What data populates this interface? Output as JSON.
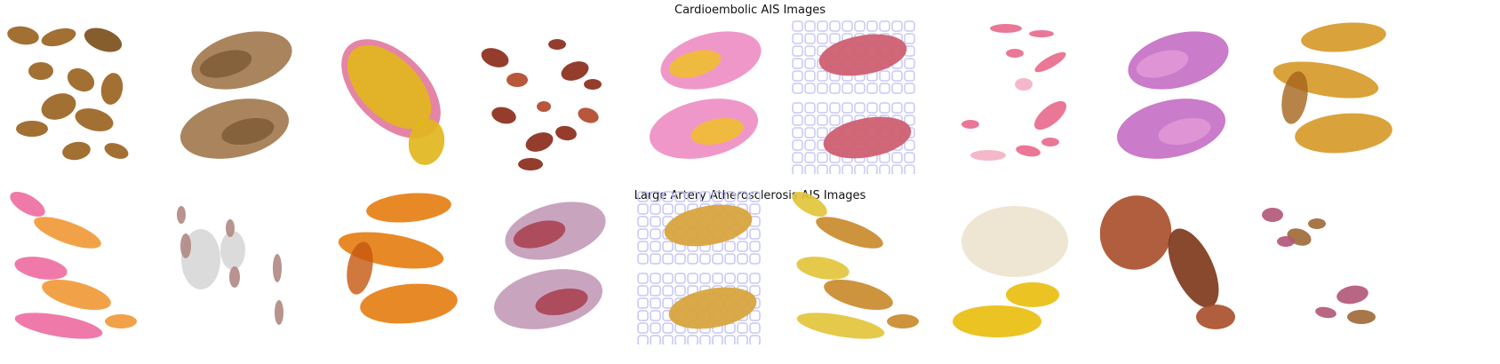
{
  "figure": {
    "rows": [
      {
        "title": "Cardioembolic AIS Images",
        "tiles": [
          {
            "stain": "brown",
            "color": "#9a6422",
            "accent": "#7c4f1b",
            "layout": "clusters"
          },
          {
            "stain": "tan-brown",
            "color": "#a27a4f",
            "accent": "#7c5a35",
            "layout": "two-blocks"
          },
          {
            "stain": "yellow",
            "color": "#e2b61e",
            "accent": "#e27aa0",
            "layout": "single-mass"
          },
          {
            "stain": "red-brown",
            "color": "#b2492a",
            "accent": "#8b2d1a",
            "layout": "scattered"
          },
          {
            "stain": "pink-yellow",
            "color": "#ef8ec4",
            "accent": "#f0c31e",
            "layout": "two-blocks"
          },
          {
            "stain": "pink-grid",
            "color": "#cd5b6d",
            "accent": "#c8c8f4",
            "layout": "grid-two"
          },
          {
            "stain": "pink",
            "color": "#e86b8d",
            "accent": "#f4b2c6",
            "layout": "scattered-fine"
          },
          {
            "stain": "purple-pink",
            "color": "#c570c4",
            "accent": "#e49bd8",
            "layout": "two-blocks"
          },
          {
            "stain": "orange",
            "color": "#d69a2a",
            "accent": "#a4641c",
            "layout": "three-bands"
          }
        ]
      },
      {
        "title": "Large Artery Atherosclerosis AIS Images",
        "tiles": [
          {
            "stain": "pink-orange",
            "color": "#ee6fa2",
            "accent": "#f09a3a",
            "layout": "diagonal"
          },
          {
            "stain": "grey",
            "color": "#b28a86",
            "accent": "#d8d8d8",
            "layout": "ovals"
          },
          {
            "stain": "orange",
            "color": "#e67f16",
            "accent": "#c5560e",
            "layout": "three-bands"
          },
          {
            "stain": "lilac",
            "color": "#c49cb8",
            "accent": "#a63645",
            "layout": "two-blocks"
          },
          {
            "stain": "yellow-grid",
            "color": "#d7a33a",
            "accent": "#c6c6f4",
            "layout": "grid-two"
          },
          {
            "stain": "yellow",
            "color": "#e2c43c",
            "accent": "#c98a2c",
            "layout": "diagonal"
          },
          {
            "stain": "yellow-white",
            "color": "#e9be10",
            "accent": "#e3d6b6",
            "layout": "bottom-mass"
          },
          {
            "stain": "brown-red",
            "color": "#a9502c",
            "accent": "#7e3a1c",
            "layout": "big-two"
          },
          {
            "stain": "purple-brown",
            "color": "#b3587a",
            "accent": "#9f6a3a",
            "layout": "corners"
          }
        ]
      }
    ]
  }
}
